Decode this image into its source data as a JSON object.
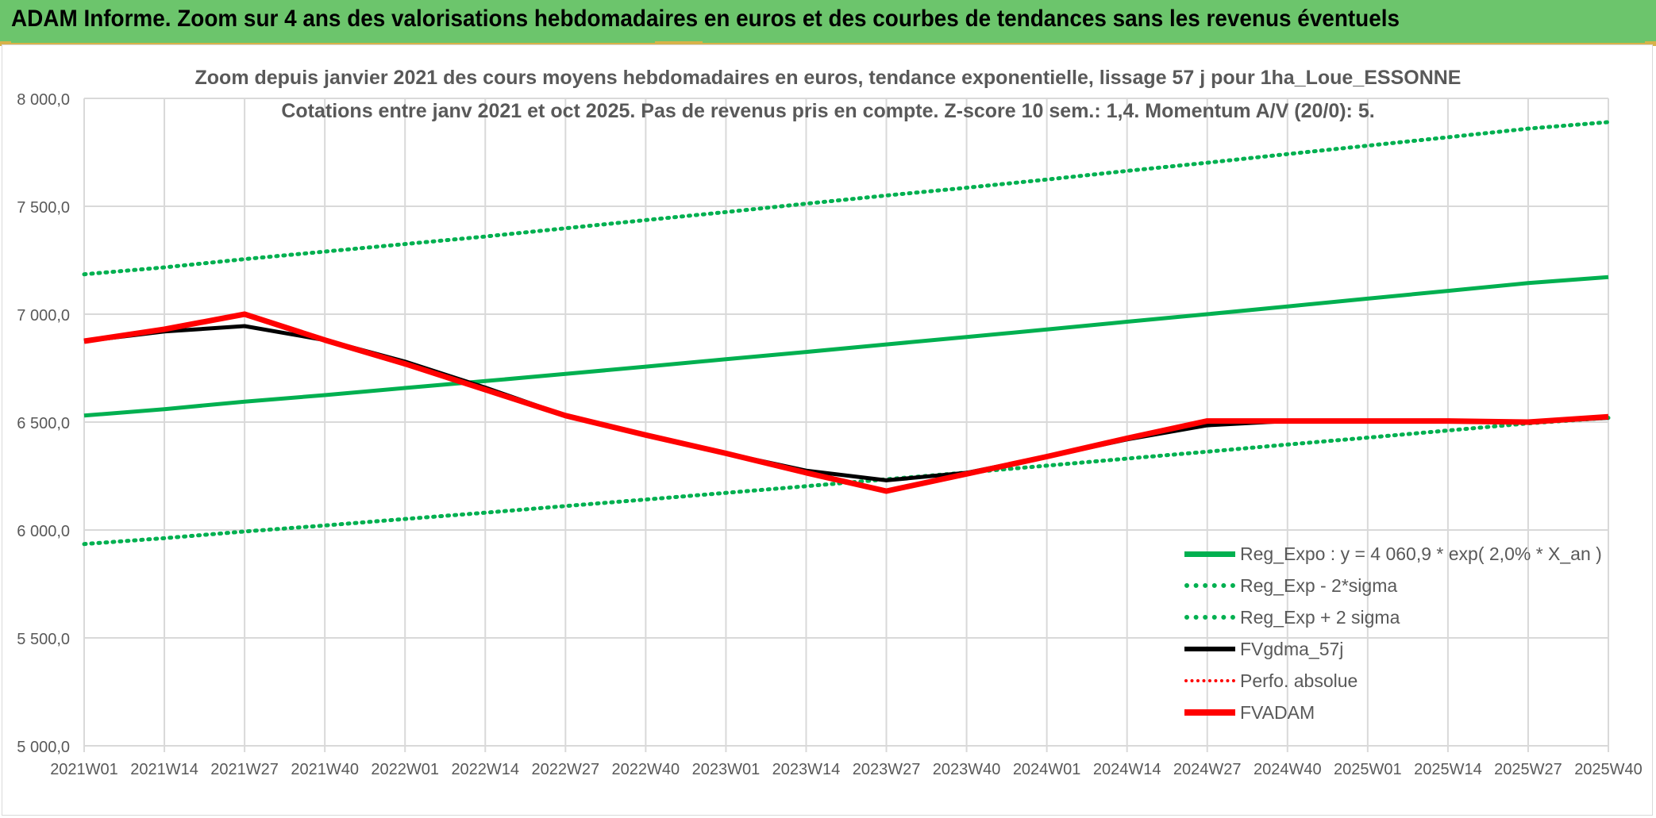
{
  "banner": {
    "title": "ADAM Informe. Zoom sur 4 ans des valorisations hebdomadaires en euros et des courbes de tendances sans les revenus éventuels"
  },
  "colors": {
    "banner_bg": "#6cc56c",
    "green": "#00b050",
    "red": "#ff0000",
    "black": "#000000",
    "axis_text": "#595959",
    "grid": "#d9d9d9"
  },
  "chart_data": {
    "type": "line",
    "title_line1": "Zoom depuis janvier 2021 des cours moyens hebdomadaires en euros, tendance exponentielle, lissage 57 j pour 1ha_Loue_ESSONNE",
    "title_line2": "Cotations entre janv 2021 et oct 2025. Pas de revenus pris en compte. Z-score 10 sem.: 1,4. Momentum A/V (20/0): 5.",
    "categories": [
      "2021W01",
      "2021W14",
      "2021W27",
      "2021W40",
      "2022W01",
      "2022W14",
      "2022W27",
      "2022W40",
      "2023W01",
      "2023W14",
      "2023W27",
      "2023W40",
      "2024W01",
      "2024W14",
      "2024W27",
      "2024W40",
      "2025W01",
      "2025W14",
      "2025W27",
      "2025W40"
    ],
    "y_ticks": [
      "5 000,0",
      "5 500,0",
      "6 000,0",
      "6 500,0",
      "7 000,0",
      "7 500,0",
      "8 000,0"
    ],
    "ylim": [
      5000,
      8000
    ],
    "grid": true,
    "legend_position": "bottom-right",
    "series": [
      {
        "name": "Reg_Expo : y = 4 060,9 * exp( 2,0% *  X_an )",
        "style": "solid-green",
        "values": [
          6530,
          6560,
          6595,
          6625,
          6658,
          6690,
          6723,
          6757,
          6791,
          6825,
          6860,
          6894,
          6929,
          6965,
          7000,
          7036,
          7072,
          7108,
          7144,
          7172
        ]
      },
      {
        "name": "Reg_Exp - 2*sigma",
        "style": "dot-green",
        "values": [
          5935,
          5962,
          5993,
          6021,
          6051,
          6080,
          6111,
          6141,
          6172,
          6203,
          6235,
          6266,
          6298,
          6331,
          6363,
          6396,
          6428,
          6461,
          6494,
          6520
        ]
      },
      {
        "name": "Reg_Exp + 2 sigma",
        "style": "dot-green",
        "values": [
          7185,
          7217,
          7255,
          7290,
          7325,
          7360,
          7398,
          7436,
          7473,
          7512,
          7550,
          7586,
          7624,
          7664,
          7702,
          7742,
          7781,
          7820,
          7860,
          7890
        ]
      },
      {
        "name": "FVgdma_57j",
        "style": "solid-black",
        "values": [
          6875,
          6920,
          6945,
          6880,
          6780,
          6660,
          6530,
          6440,
          6355,
          6275,
          6230,
          6265,
          6340,
          6420,
          6485,
          6505,
          6505,
          6505,
          6500,
          6520
        ]
      },
      {
        "name": "Perfo. absolue",
        "style": "dot-red",
        "values": [
          6875,
          6930,
          7000,
          6880,
          6770,
          6650,
          6530,
          6440,
          6355,
          6265,
          6180,
          6260,
          6340,
          6425,
          6505,
          6505,
          6505,
          6505,
          6500,
          6525
        ]
      },
      {
        "name": "FVADAM",
        "style": "solid-red",
        "values": [
          6875,
          6930,
          7000,
          6880,
          6770,
          6650,
          6530,
          6440,
          6355,
          6265,
          6180,
          6260,
          6340,
          6425,
          6505,
          6505,
          6505,
          6505,
          6500,
          6525
        ]
      }
    ]
  }
}
